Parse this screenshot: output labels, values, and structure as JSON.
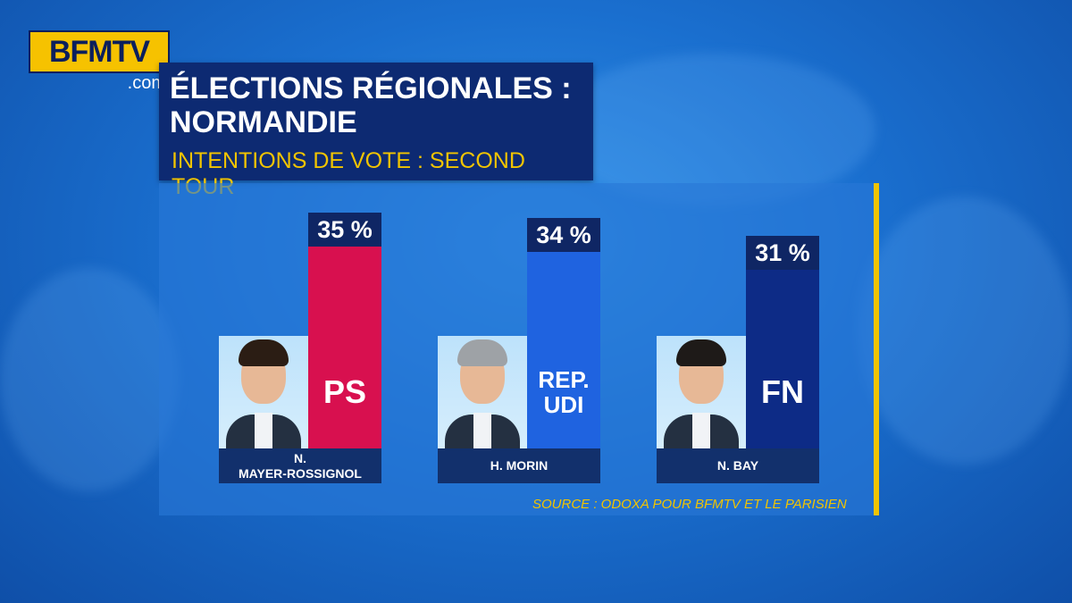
{
  "logo": {
    "brand": "BFMTV",
    "domain": ".com"
  },
  "header": {
    "title": "ÉLECTIONS RÉGIONALES :\nNORMANDIE",
    "subtitle": "INTENTIONS DE VOTE : SECOND TOUR"
  },
  "source": "SOURCE : ODOXA POUR BFMTV ET LE PARISIEN",
  "chart_data": {
    "type": "bar",
    "categories": [
      "N. MAYER-ROSSIGNOL",
      "H. MORIN",
      "N. BAY"
    ],
    "values": [
      35,
      34,
      31
    ],
    "value_labels": [
      "35 %",
      "34 %",
      "31 %"
    ],
    "parties": [
      "PS",
      "REP.\nUDI",
      "FN"
    ],
    "bar_colors": [
      "#d8104f",
      "#1f63e0",
      "#0d2b86"
    ],
    "ylim": [
      0,
      35
    ],
    "title": "ÉLECTIONS RÉGIONALES : NORMANDIE",
    "subtitle": "INTENTIONS DE VOTE : SECOND TOUR",
    "xlabel": "",
    "ylabel": "",
    "grid": false
  },
  "candidates": [
    {
      "name": "N.\nMAYER-ROSSIGNOL",
      "party": "PS",
      "pct_label": "35 %",
      "value": 35,
      "color": "#d8104f",
      "hair": "#2b1d14"
    },
    {
      "name": "H. MORIN",
      "party": "REP.\nUDI",
      "pct_label": "34 %",
      "value": 34,
      "color": "#1f63e0",
      "hair": "#9ea2a6"
    },
    {
      "name": "N. BAY",
      "party": "FN",
      "pct_label": "31 %",
      "value": 31,
      "color": "#0d2b86",
      "hair": "#1e1a18"
    }
  ]
}
